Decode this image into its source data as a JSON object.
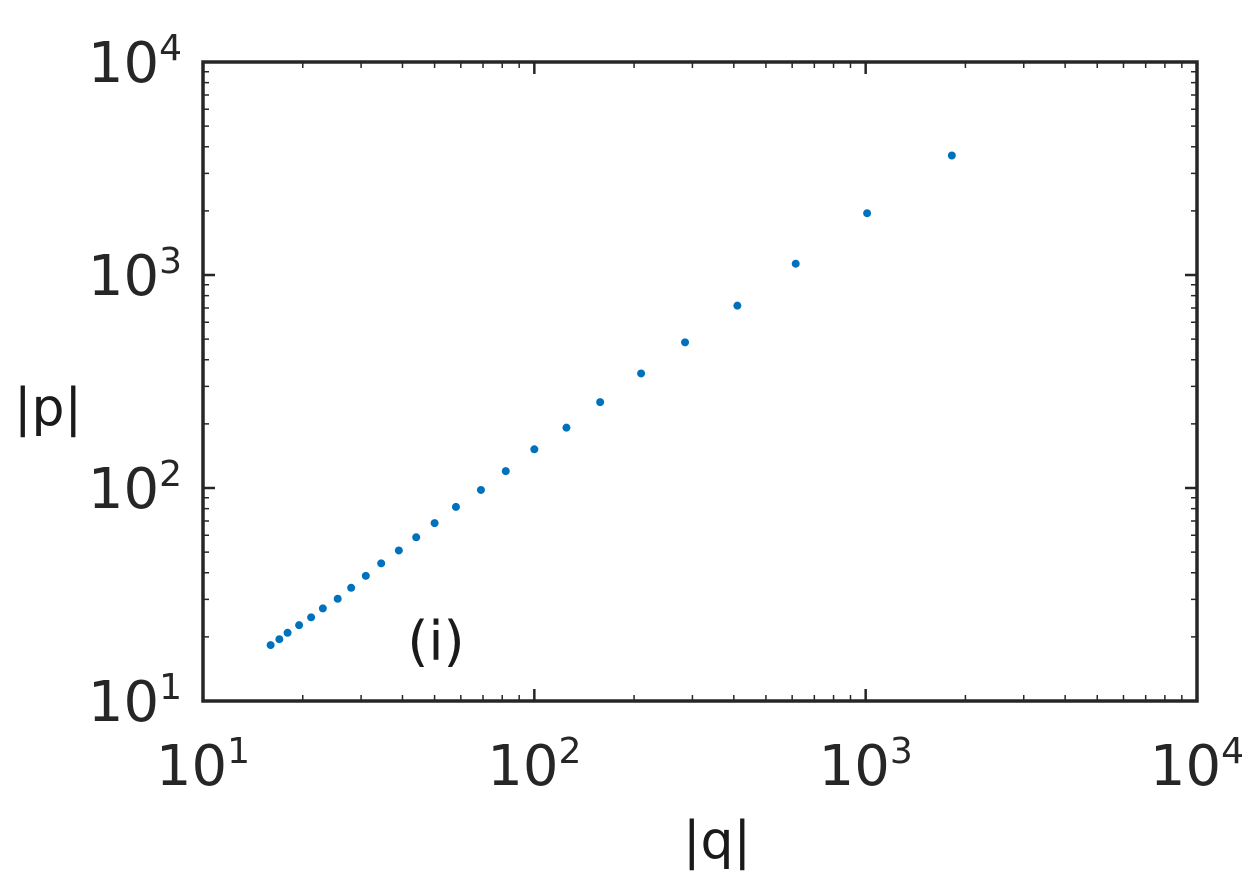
{
  "chart_data": {
    "type": "scatter",
    "title": "",
    "xlabel": "|q|",
    "ylabel": "|p|",
    "x_scale": "log",
    "y_scale": "log",
    "xlim": [
      10,
      10000
    ],
    "ylim": [
      10,
      10000
    ],
    "x_ticks": [
      {
        "base": "10",
        "exp": "1",
        "value": 10
      },
      {
        "base": "10",
        "exp": "2",
        "value": 100
      },
      {
        "base": "10",
        "exp": "3",
        "value": 1000
      },
      {
        "base": "10",
        "exp": "4",
        "value": 10000
      }
    ],
    "y_ticks": [
      {
        "base": "10",
        "exp": "1",
        "value": 10
      },
      {
        "base": "10",
        "exp": "2",
        "value": 100
      },
      {
        "base": "10",
        "exp": "3",
        "value": 1000
      },
      {
        "base": "10",
        "exp": "4",
        "value": 10000
      }
    ],
    "grid": false,
    "annotation": "(i)",
    "marker_color": "#0072bd",
    "points": [
      {
        "x": 16.0,
        "y": 18.3
      },
      {
        "x": 17.0,
        "y": 19.5
      },
      {
        "x": 18.0,
        "y": 20.9
      },
      {
        "x": 19.5,
        "y": 22.7
      },
      {
        "x": 21.2,
        "y": 24.7
      },
      {
        "x": 23.0,
        "y": 27.2
      },
      {
        "x": 25.5,
        "y": 30.2
      },
      {
        "x": 28.0,
        "y": 34.0
      },
      {
        "x": 31.0,
        "y": 38.7
      },
      {
        "x": 34.5,
        "y": 44.3
      },
      {
        "x": 39.0,
        "y": 50.9
      },
      {
        "x": 44.0,
        "y": 58.7
      },
      {
        "x": 50.0,
        "y": 68.4
      },
      {
        "x": 58.0,
        "y": 81.5
      },
      {
        "x": 69.0,
        "y": 97.9
      },
      {
        "x": 82.0,
        "y": 120
      },
      {
        "x": 100,
        "y": 152
      },
      {
        "x": 125,
        "y": 192
      },
      {
        "x": 158,
        "y": 253
      },
      {
        "x": 210,
        "y": 345
      },
      {
        "x": 285,
        "y": 483
      },
      {
        "x": 410,
        "y": 718
      },
      {
        "x": 615,
        "y": 1130
      },
      {
        "x": 1010,
        "y": 1950
      },
      {
        "x": 1820,
        "y": 3640
      }
    ]
  }
}
